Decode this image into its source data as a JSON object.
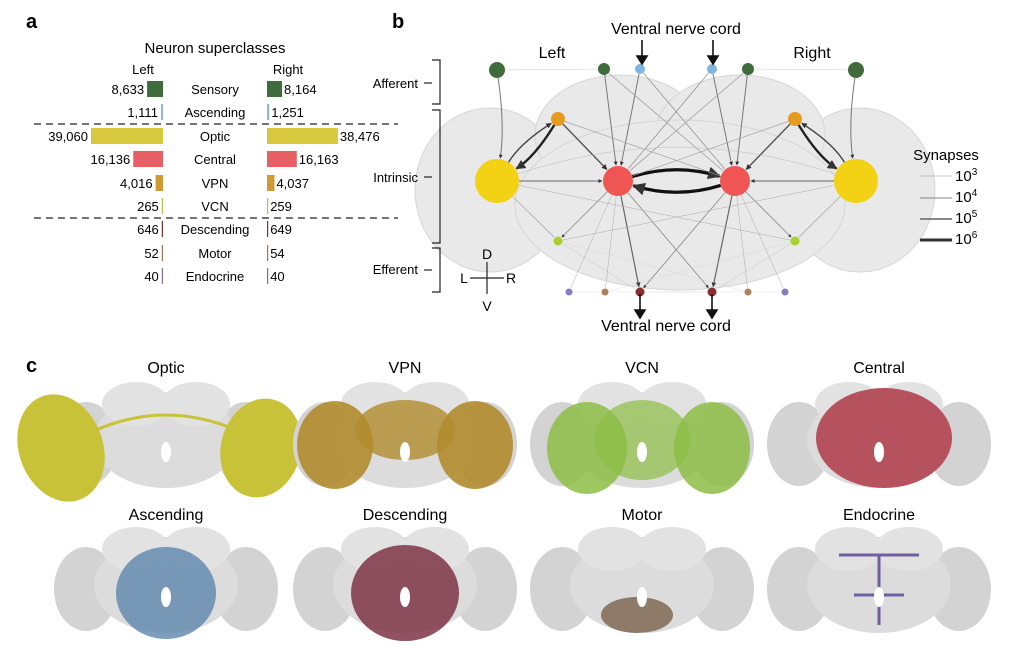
{
  "panel_a": {
    "label": "a",
    "title": "Neuron superclasses",
    "left_header": "Left",
    "right_header": "Right",
    "colors": {
      "Sensory": "#3f6b3d",
      "Ascending": "#8fb8dd",
      "Optic": "#d8c93c",
      "Central": "#e65f63",
      "VPN": "#d19a32",
      "VCN": "#b4c44a",
      "Descending": "#7b3232",
      "Motor": "#a0785a",
      "Endocrine": "#7f6aa8"
    },
    "chart_data": {
      "type": "bar",
      "categories": [
        "Sensory",
        "Ascending",
        "Optic",
        "Central",
        "VPN",
        "VCN",
        "Descending",
        "Motor",
        "Endocrine"
      ],
      "series": [
        {
          "name": "Left",
          "values": [
            8633,
            1111,
            39060,
            16136,
            4016,
            265,
            646,
            52,
            40
          ]
        },
        {
          "name": "Right",
          "values": [
            8164,
            1251,
            38476,
            16163,
            4037,
            259,
            649,
            54,
            40
          ]
        }
      ],
      "left_labels": [
        "8,633",
        "1,111",
        "39,060",
        "16,136",
        "4,016",
        "265",
        "646",
        "52",
        "40"
      ],
      "right_labels": [
        "8,164",
        "1,251",
        "38,476",
        "16,163",
        "4,037",
        "259",
        "649",
        "54",
        "40"
      ],
      "group_breaks_after": [
        "Ascending",
        "VCN"
      ]
    }
  },
  "panel_b": {
    "label": "b",
    "vnc_top": "Ventral nerve cord",
    "vnc_bottom": "Ventral nerve cord",
    "left": "Left",
    "right": "Right",
    "brackets": [
      "Afferent",
      "Intrinsic",
      "Efferent"
    ],
    "compass": {
      "d": "D",
      "v": "V",
      "l": "L",
      "r": "R"
    },
    "legend_title": "Synapses",
    "legend_base": "10",
    "legend_exponents": [
      "3",
      "4",
      "5",
      "6"
    ],
    "node_colors": {
      "sensory": "#3f6b3d",
      "ascending": "#7fb6e0",
      "vpn": "#e59a20",
      "optic": "#f3d216",
      "central": "#ee5553",
      "vcn": "#a8d030",
      "endocrine": "#8a7bc0",
      "motor": "#b0805c",
      "descending": "#8a2e2e"
    }
  },
  "panel_c": {
    "label": "c",
    "items": [
      {
        "name": "Optic",
        "color": "#c8c238"
      },
      {
        "name": "VPN",
        "color": "#b18c2e"
      },
      {
        "name": "VCN",
        "color": "#8dbd45"
      },
      {
        "name": "Central",
        "color": "#b5525d"
      },
      {
        "name": "Ascending",
        "color": "#5c86ab"
      },
      {
        "name": "Descending",
        "color": "#7e3447"
      },
      {
        "name": "Motor",
        "color": "#8d7a68"
      },
      {
        "name": "Endocrine",
        "color": "#6f5fa1"
      }
    ]
  }
}
